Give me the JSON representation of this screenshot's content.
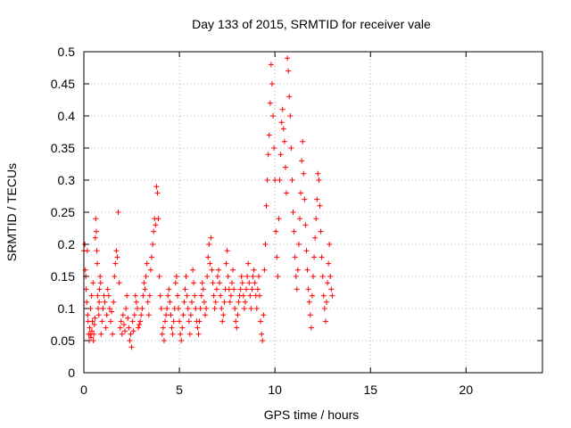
{
  "chart_data": {
    "type": "scatter",
    "title": "Day 133 of 2015, SRMTID for receiver vale",
    "xlabel": "GPS time / hours",
    "ylabel": "SRMTID / TECUs",
    "xlim": [
      0,
      24
    ],
    "ylim": [
      0,
      0.5
    ],
    "xticks": [
      0,
      5,
      10,
      15,
      20
    ],
    "xtick_labels": [
      "0",
      "5",
      "10",
      "15",
      "20"
    ],
    "yticks": [
      0,
      0.05,
      0.1,
      0.15,
      0.2,
      0.25,
      0.3,
      0.35,
      0.4,
      0.45,
      0.5
    ],
    "ytick_labels": [
      "0",
      "0.05",
      "0.1",
      "0.15",
      "0.2",
      "0.25",
      "0.3",
      "0.35",
      "0.4",
      "0.45",
      "0.5"
    ],
    "grid": true,
    "marker": "plus",
    "color": "#ff0000",
    "series": [
      {
        "name": "SRMTID",
        "points": [
          [
            0.0,
            0.19
          ],
          [
            0.05,
            0.2
          ],
          [
            0.08,
            0.16
          ],
          [
            0.1,
            0.15
          ],
          [
            0.12,
            0.13
          ],
          [
            0.15,
            0.11
          ],
          [
            0.18,
            0.19
          ],
          [
            0.2,
            0.09
          ],
          [
            0.22,
            0.08
          ],
          [
            0.25,
            0.06
          ],
          [
            0.28,
            0.05
          ],
          [
            0.3,
            0.07
          ],
          [
            0.33,
            0.06
          ],
          [
            0.35,
            0.1
          ],
          [
            0.38,
            0.055
          ],
          [
            0.4,
            0.12
          ],
          [
            0.42,
            0.065
          ],
          [
            0.45,
            0.08
          ],
          [
            0.48,
            0.14
          ],
          [
            0.5,
            0.05
          ],
          [
            0.52,
            0.06
          ],
          [
            0.55,
            0.075
          ],
          [
            0.58,
            0.085
          ],
          [
            0.6,
            0.21
          ],
          [
            0.62,
            0.24
          ],
          [
            0.65,
            0.22
          ],
          [
            0.68,
            0.19
          ],
          [
            0.7,
            0.17
          ],
          [
            0.72,
            0.12
          ],
          [
            0.75,
            0.1
          ],
          [
            0.78,
            0.09
          ],
          [
            0.8,
            0.11
          ],
          [
            0.82,
            0.13
          ],
          [
            0.85,
            0.15
          ],
          [
            0.88,
            0.14
          ],
          [
            0.9,
            0.06
          ],
          [
            0.95,
            0.08
          ],
          [
            1.0,
            0.1
          ],
          [
            1.05,
            0.12
          ],
          [
            1.1,
            0.11
          ],
          [
            1.15,
            0.07
          ],
          [
            1.2,
            0.09
          ],
          [
            1.25,
            0.13
          ],
          [
            1.3,
            0.12
          ],
          [
            1.35,
            0.1
          ],
          [
            1.4,
            0.08
          ],
          [
            1.45,
            0.095
          ],
          [
            1.5,
            0.06
          ],
          [
            1.55,
            0.11
          ],
          [
            1.6,
            0.15
          ],
          [
            1.65,
            0.17
          ],
          [
            1.7,
            0.19
          ],
          [
            1.75,
            0.18
          ],
          [
            1.8,
            0.25
          ],
          [
            1.85,
            0.14
          ],
          [
            1.9,
            0.07
          ],
          [
            1.95,
            0.08
          ],
          [
            2.0,
            0.06
          ],
          [
            2.05,
            0.09
          ],
          [
            2.1,
            0.075
          ],
          [
            2.15,
            0.065
          ],
          [
            2.2,
            0.1
          ],
          [
            2.25,
            0.12
          ],
          [
            2.3,
            0.085
          ],
          [
            2.35,
            0.07
          ],
          [
            2.4,
            0.05
          ],
          [
            2.45,
            0.06
          ],
          [
            2.5,
            0.04
          ],
          [
            2.55,
            0.08
          ],
          [
            2.6,
            0.065
          ],
          [
            2.65,
            0.09
          ],
          [
            2.7,
            0.12
          ],
          [
            2.75,
            0.11
          ],
          [
            2.8,
            0.1
          ],
          [
            2.85,
            0.07
          ],
          [
            2.9,
            0.075
          ],
          [
            2.95,
            0.08
          ],
          [
            3.0,
            0.09
          ],
          [
            3.05,
            0.1
          ],
          [
            3.1,
            0.12
          ],
          [
            3.15,
            0.14
          ],
          [
            3.2,
            0.13
          ],
          [
            3.25,
            0.15
          ],
          [
            3.3,
            0.17
          ],
          [
            3.35,
            0.11
          ],
          [
            3.4,
            0.09
          ],
          [
            3.45,
            0.12
          ],
          [
            3.5,
            0.16
          ],
          [
            3.55,
            0.18
          ],
          [
            3.6,
            0.2
          ],
          [
            3.65,
            0.22
          ],
          [
            3.7,
            0.24
          ],
          [
            3.75,
            0.23
          ],
          [
            3.8,
            0.29
          ],
          [
            3.85,
            0.28
          ],
          [
            3.9,
            0.24
          ],
          [
            3.95,
            0.15
          ],
          [
            4.0,
            0.12
          ],
          [
            4.05,
            0.1
          ],
          [
            4.1,
            0.06
          ],
          [
            4.15,
            0.07
          ],
          [
            4.2,
            0.05
          ],
          [
            4.25,
            0.08
          ],
          [
            4.3,
            0.09
          ],
          [
            4.35,
            0.1
          ],
          [
            4.4,
            0.12
          ],
          [
            4.45,
            0.13
          ],
          [
            4.5,
            0.11
          ],
          [
            4.55,
            0.09
          ],
          [
            4.6,
            0.07
          ],
          [
            4.65,
            0.06
          ],
          [
            4.7,
            0.08
          ],
          [
            4.75,
            0.1
          ],
          [
            4.8,
            0.14
          ],
          [
            4.85,
            0.15
          ],
          [
            4.9,
            0.12
          ],
          [
            4.95,
            0.1
          ],
          [
            5.0,
            0.08
          ],
          [
            5.05,
            0.06
          ],
          [
            5.1,
            0.05
          ],
          [
            5.15,
            0.07
          ],
          [
            5.2,
            0.09
          ],
          [
            5.25,
            0.11
          ],
          [
            5.3,
            0.13
          ],
          [
            5.35,
            0.15
          ],
          [
            5.4,
            0.12
          ],
          [
            5.45,
            0.1
          ],
          [
            5.5,
            0.08
          ],
          [
            5.55,
            0.06
          ],
          [
            5.6,
            0.09
          ],
          [
            5.65,
            0.11
          ],
          [
            5.7,
            0.16
          ],
          [
            5.75,
            0.14
          ],
          [
            5.8,
            0.12
          ],
          [
            5.85,
            0.1
          ],
          [
            5.9,
            0.08
          ],
          [
            5.95,
            0.07
          ],
          [
            6.0,
            0.06
          ],
          [
            6.05,
            0.08
          ],
          [
            6.1,
            0.1
          ],
          [
            6.15,
            0.12
          ],
          [
            6.2,
            0.14
          ],
          [
            6.25,
            0.13
          ],
          [
            6.3,
            0.11
          ],
          [
            6.35,
            0.09
          ],
          [
            6.4,
            0.1
          ],
          [
            6.45,
            0.15
          ],
          [
            6.5,
            0.18
          ],
          [
            6.55,
            0.2
          ],
          [
            6.6,
            0.17
          ],
          [
            6.65,
            0.21
          ],
          [
            6.7,
            0.16
          ],
          [
            6.75,
            0.14
          ],
          [
            6.8,
            0.12
          ],
          [
            6.85,
            0.1
          ],
          [
            6.9,
            0.11
          ],
          [
            6.95,
            0.13
          ],
          [
            7.0,
            0.15
          ],
          [
            7.05,
            0.16
          ],
          [
            7.1,
            0.14
          ],
          [
            7.15,
            0.12
          ],
          [
            7.2,
            0.1
          ],
          [
            7.25,
            0.08
          ],
          [
            7.3,
            0.09
          ],
          [
            7.35,
            0.11
          ],
          [
            7.4,
            0.13
          ],
          [
            7.45,
            0.17
          ],
          [
            7.5,
            0.19
          ],
          [
            7.55,
            0.15
          ],
          [
            7.6,
            0.13
          ],
          [
            7.65,
            0.11
          ],
          [
            7.7,
            0.12
          ],
          [
            7.75,
            0.14
          ],
          [
            7.8,
            0.16
          ],
          [
            7.85,
            0.13
          ],
          [
            7.9,
            0.1
          ],
          [
            7.95,
            0.08
          ],
          [
            8.0,
            0.07
          ],
          [
            8.05,
            0.09
          ],
          [
            8.1,
            0.11
          ],
          [
            8.15,
            0.12
          ],
          [
            8.2,
            0.13
          ],
          [
            8.25,
            0.15
          ],
          [
            8.3,
            0.14
          ],
          [
            8.35,
            0.12
          ],
          [
            8.4,
            0.1
          ],
          [
            8.45,
            0.11
          ],
          [
            8.5,
            0.13
          ],
          [
            8.55,
            0.15
          ],
          [
            8.6,
            0.17
          ],
          [
            8.65,
            0.14
          ],
          [
            8.7,
            0.12
          ],
          [
            8.75,
            0.1
          ],
          [
            8.8,
            0.13
          ],
          [
            8.85,
            0.15
          ],
          [
            8.9,
            0.16
          ],
          [
            8.95,
            0.14
          ],
          [
            9.0,
            0.12
          ],
          [
            9.05,
            0.1
          ],
          [
            9.1,
            0.13
          ],
          [
            9.15,
            0.15
          ],
          [
            9.2,
            0.12
          ],
          [
            9.25,
            0.08
          ],
          [
            9.3,
            0.06
          ],
          [
            9.35,
            0.05
          ],
          [
            9.4,
            0.09
          ],
          [
            9.45,
            0.16
          ],
          [
            9.5,
            0.2
          ],
          [
            9.55,
            0.26
          ],
          [
            9.6,
            0.3
          ],
          [
            9.65,
            0.34
          ],
          [
            9.7,
            0.37
          ],
          [
            9.75,
            0.42
          ],
          [
            9.8,
            0.48
          ],
          [
            9.85,
            0.45
          ],
          [
            9.9,
            0.4
          ],
          [
            9.95,
            0.35
          ],
          [
            10.0,
            0.3
          ],
          [
            10.05,
            0.22
          ],
          [
            10.1,
            0.18
          ],
          [
            10.15,
            0.15
          ],
          [
            10.2,
            0.24
          ],
          [
            10.25,
            0.3
          ],
          [
            10.3,
            0.34
          ],
          [
            10.35,
            0.39
          ],
          [
            10.4,
            0.41
          ],
          [
            10.45,
            0.38
          ],
          [
            10.5,
            0.36
          ],
          [
            10.55,
            0.32
          ],
          [
            10.6,
            0.28
          ],
          [
            10.65,
            0.49
          ],
          [
            10.7,
            0.47
          ],
          [
            10.75,
            0.43
          ],
          [
            10.8,
            0.4
          ],
          [
            10.85,
            0.35
          ],
          [
            10.9,
            0.3
          ],
          [
            10.95,
            0.25
          ],
          [
            11.0,
            0.22
          ],
          [
            11.05,
            0.18
          ],
          [
            11.1,
            0.15
          ],
          [
            11.15,
            0.13
          ],
          [
            11.2,
            0.16
          ],
          [
            11.25,
            0.2
          ],
          [
            11.3,
            0.24
          ],
          [
            11.35,
            0.28
          ],
          [
            11.4,
            0.33
          ],
          [
            11.45,
            0.36
          ],
          [
            11.5,
            0.31
          ],
          [
            11.55,
            0.27
          ],
          [
            11.6,
            0.23
          ],
          [
            11.65,
            0.19
          ],
          [
            11.7,
            0.16
          ],
          [
            11.75,
            0.13
          ],
          [
            11.8,
            0.11
          ],
          [
            11.85,
            0.09
          ],
          [
            11.9,
            0.07
          ],
          [
            11.95,
            0.12
          ],
          [
            12.0,
            0.15
          ],
          [
            12.05,
            0.18
          ],
          [
            12.1,
            0.21
          ],
          [
            12.15,
            0.24
          ],
          [
            12.2,
            0.27
          ],
          [
            12.25,
            0.31
          ],
          [
            12.3,
            0.3
          ],
          [
            12.35,
            0.26
          ],
          [
            12.4,
            0.22
          ],
          [
            12.45,
            0.18
          ],
          [
            12.5,
            0.15
          ],
          [
            12.55,
            0.12
          ],
          [
            12.6,
            0.1
          ],
          [
            12.65,
            0.08
          ],
          [
            12.7,
            0.11
          ],
          [
            12.75,
            0.14
          ],
          [
            12.8,
            0.17
          ],
          [
            12.85,
            0.2
          ],
          [
            12.9,
            0.15
          ],
          [
            12.95,
            0.13
          ],
          [
            13.0,
            0.12
          ]
        ]
      }
    ]
  }
}
